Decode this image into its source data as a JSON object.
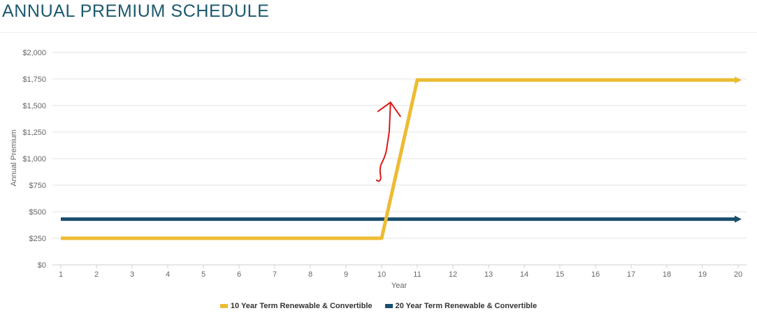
{
  "page": {
    "title": "ANNUAL PREMIUM SCHEDULE"
  },
  "colors": {
    "series_10yr": "#edbb34",
    "series_20yr": "#1a4e6d",
    "annotation": "#d91a1a",
    "grid": "#e3e3e3"
  },
  "chart_data": {
    "type": "line",
    "title": "",
    "xlabel": "Year",
    "ylabel": "Annual Premium",
    "x": [
      1,
      2,
      3,
      4,
      5,
      6,
      7,
      8,
      9,
      10,
      11,
      12,
      13,
      14,
      15,
      16,
      17,
      18,
      19,
      20
    ],
    "y_ticks": [
      0,
      250,
      500,
      750,
      1000,
      1250,
      1500,
      1750,
      2000
    ],
    "y_tick_labels": [
      "$0",
      "$250",
      "$500",
      "$750",
      "$1,000",
      "$1,250",
      "$1,500",
      "$1,750",
      "$2,000"
    ],
    "ylim": [
      0,
      2000
    ],
    "xlim": [
      1,
      20
    ],
    "grid": true,
    "legend_position": "bottom",
    "series": [
      {
        "name": "10 Year Term Renewable & Convertible",
        "color": "#edbb34",
        "values": [
          250,
          250,
          250,
          250,
          250,
          250,
          250,
          250,
          250,
          250,
          1740,
          1740,
          1740,
          1740,
          1740,
          1740,
          1740,
          1740,
          1740,
          1740
        ]
      },
      {
        "name": "20 Year Term Renewable & Convertible",
        "color": "#1a4e6d",
        "values": [
          430,
          430,
          430,
          430,
          430,
          430,
          430,
          430,
          430,
          430,
          430,
          430,
          430,
          430,
          430,
          430,
          430,
          430,
          430,
          430
        ]
      }
    ],
    "annotations": [
      {
        "type": "handwritten-arrow",
        "color": "#d91a1a",
        "from_x": 9.9,
        "from_y": 790,
        "to_x": 10.25,
        "to_y": 1530
      }
    ]
  }
}
